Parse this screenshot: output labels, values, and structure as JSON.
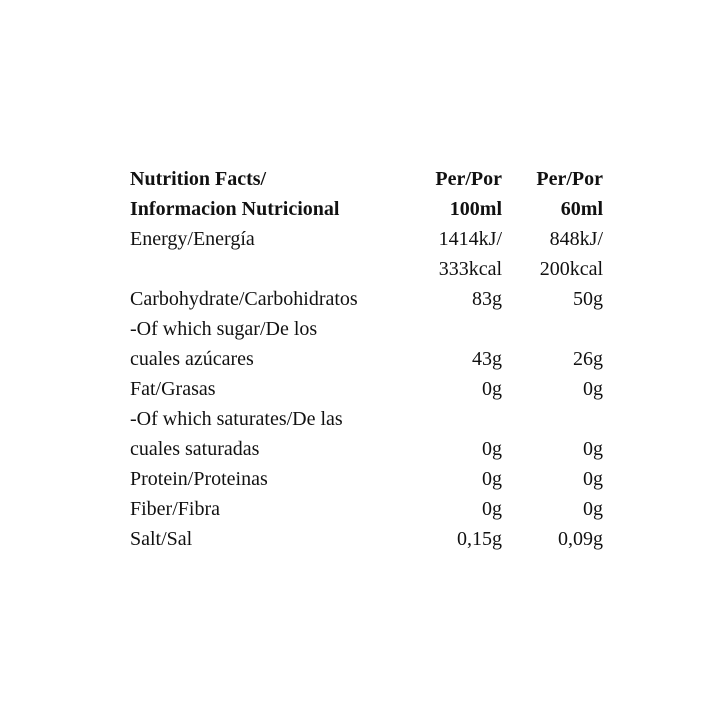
{
  "header": {
    "title_line1": "Nutrition Facts/",
    "title_line2": "Informacion Nutricional",
    "col1_line1": "Per/Por",
    "col1_line2": "100ml",
    "col2_line1": "Per/Por",
    "col2_line2": "60ml"
  },
  "rows": [
    {
      "label": "Energy/Energía",
      "v1": "1414kJ/",
      "v2": "848kJ/"
    },
    {
      "label": "",
      "v1": "333kcal",
      "v2": "200kcal"
    },
    {
      "label": "Carbohydrate/Carbohidratos",
      "v1": "83g",
      "v2": "50g"
    },
    {
      "label": "-Of which sugar/De los",
      "v1": "",
      "v2": ""
    },
    {
      "label": "cuales azúcares",
      "v1": "43g",
      "v2": "26g"
    },
    {
      "label": "Fat/Grasas",
      "v1": "0g",
      "v2": "0g"
    },
    {
      "label": "-Of which saturates/De las",
      "v1": "",
      "v2": ""
    },
    {
      "label": "cuales saturadas",
      "v1": "0g",
      "v2": "0g"
    },
    {
      "label": "Protein/Proteinas",
      "v1": "0g",
      "v2": "0g"
    },
    {
      "label": "Fiber/Fibra",
      "v1": "0g",
      "v2": "0g"
    },
    {
      "label": "Salt/Sal",
      "v1": "0,15g",
      "v2": "0,09g"
    }
  ]
}
